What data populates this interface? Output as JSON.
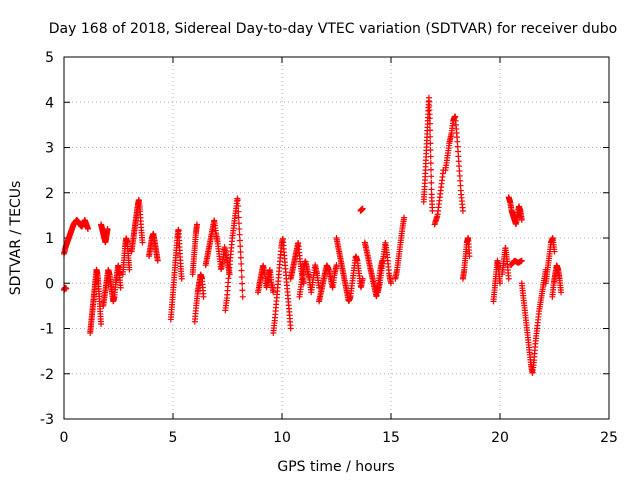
{
  "chart_data": {
    "type": "scatter",
    "title": "Day 168 of 2018, Sidereal Day-to-day VTEC variation (SDTVAR) for receiver dubo",
    "xlabel": "GPS time / hours",
    "ylabel": "SDTVAR / TECUs",
    "xlim": [
      0,
      25
    ],
    "ylim": [
      -3,
      5
    ],
    "xticks": [
      0,
      5,
      10,
      15,
      20,
      25
    ],
    "yticks": [
      -3,
      -2,
      -1,
      0,
      1,
      2,
      3,
      4,
      5
    ],
    "grid": true,
    "marker": "plus",
    "series_color": "#ff0000",
    "segments": [
      {
        "x0": 0.0,
        "x1": 0.1,
        "ys": [
          -0.15,
          -0.1,
          -0.12
        ]
      },
      {
        "x0": 0.0,
        "x1": 1.1,
        "ys": [
          0.65,
          0.8,
          0.9,
          1.0,
          1.1,
          1.2,
          1.3,
          1.35,
          1.4,
          1.35,
          1.3,
          1.25,
          1.3,
          1.4,
          1.3,
          1.2
        ]
      },
      {
        "x0": 1.2,
        "x1": 1.7,
        "ys": [
          -1.1,
          -0.9,
          -0.7,
          -0.5,
          -0.3,
          -0.1,
          0.1,
          0.3,
          0.2,
          0.0,
          -0.3,
          -0.6,
          -0.9
        ]
      },
      {
        "x0": 1.7,
        "x1": 2.0,
        "ys": [
          1.3,
          1.2,
          1.1,
          1.0,
          0.9,
          1.05,
          1.2
        ]
      },
      {
        "x0": 1.8,
        "x1": 2.6,
        "ys": [
          -0.5,
          -0.3,
          -0.1,
          0.1,
          0.3,
          0.2,
          0.0,
          -0.2,
          -0.4,
          -0.3,
          0.0,
          0.2,
          0.4,
          0.2,
          -0.1
        ]
      },
      {
        "x0": 2.7,
        "x1": 3.0,
        "ys": [
          0.2,
          0.5,
          0.8,
          1.0,
          0.9,
          0.6,
          0.3
        ]
      },
      {
        "x0": 3.1,
        "x1": 3.6,
        "ys": [
          0.7,
          0.9,
          1.1,
          1.3,
          1.5,
          1.7,
          1.85,
          1.6,
          1.2,
          0.9
        ]
      },
      {
        "x0": 3.9,
        "x1": 4.3,
        "ys": [
          0.6,
          0.8,
          1.0,
          1.1,
          0.9,
          0.7,
          0.5
        ]
      },
      {
        "x0": 4.9,
        "x1": 5.4,
        "ys": [
          -0.8,
          -0.5,
          -0.2,
          0.1,
          0.4,
          0.7,
          1.0,
          1.2,
          0.8,
          0.4,
          0.1
        ]
      },
      {
        "x0": 5.9,
        "x1": 6.1,
        "ys": [
          0.2,
          0.5,
          0.8,
          1.1,
          1.3
        ]
      },
      {
        "x0": 6.0,
        "x1": 6.4,
        "ys": [
          -0.85,
          -0.5,
          -0.2,
          0.0,
          0.2,
          0.1,
          -0.3
        ]
      },
      {
        "x0": 6.5,
        "x1": 7.6,
        "ys": [
          0.4,
          0.6,
          0.8,
          1.0,
          1.2,
          1.4,
          1.1,
          0.9,
          0.6,
          0.3,
          0.5,
          0.8,
          0.6,
          0.4,
          0.2
        ]
      },
      {
        "x0": 7.4,
        "x1": 8.2,
        "ys": [
          -0.6,
          -0.3,
          0.2,
          0.6,
          1.0,
          1.3,
          1.6,
          1.9,
          1.2,
          0.5,
          -0.3
        ]
      },
      {
        "x0": 8.9,
        "x1": 9.6,
        "ys": [
          -0.2,
          0.0,
          0.2,
          0.4,
          0.2,
          -0.1,
          0.1,
          0.3,
          0.0,
          -0.2
        ]
      },
      {
        "x0": 9.6,
        "x1": 10.4,
        "ys": [
          -1.1,
          -0.8,
          -0.4,
          0.0,
          0.4,
          0.8,
          1.0,
          0.6,
          0.2,
          -0.2,
          -0.6,
          -1.0
        ]
      },
      {
        "x0": 10.4,
        "x1": 11.0,
        "ys": [
          0.1,
          0.3,
          0.5,
          0.7,
          0.9,
          0.5,
          0.2,
          0.0
        ]
      },
      {
        "x0": 10.8,
        "x1": 11.7,
        "ys": [
          -0.3,
          0.0,
          0.3,
          0.5,
          0.3,
          0.1,
          -0.2,
          0.1,
          0.4,
          0.2,
          -0.1
        ]
      },
      {
        "x0": 11.7,
        "x1": 12.5,
        "ys": [
          -0.4,
          -0.2,
          0.0,
          0.2,
          0.4,
          0.3,
          0.1,
          -0.1,
          0.2,
          0.4
        ]
      },
      {
        "x0": 12.5,
        "x1": 13.7,
        "ys": [
          1.0,
          0.8,
          0.6,
          0.4,
          0.2,
          0.0,
          -0.2,
          -0.4,
          -0.3,
          0.0,
          0.3,
          0.6,
          0.5,
          0.2,
          -0.1,
          0.1
        ]
      },
      {
        "x0": 13.6,
        "x1": 13.7,
        "ys": [
          1.6,
          1.65
        ]
      },
      {
        "x0": 13.8,
        "x1": 14.6,
        "ys": [
          0.9,
          0.7,
          0.5,
          0.3,
          0.1,
          -0.1,
          -0.3,
          0.0,
          0.3,
          0.5
        ]
      },
      {
        "x0": 14.4,
        "x1": 15.0,
        "ys": [
          -0.2,
          0.0,
          0.3,
          0.6,
          0.9,
          0.6,
          0.2,
          0.0
        ]
      },
      {
        "x0": 15.2,
        "x1": 15.6,
        "ys": [
          0.1,
          0.3,
          0.6,
          0.9,
          1.2,
          1.45
        ]
      },
      {
        "x0": 16.5,
        "x1": 16.9,
        "ys": [
          1.8,
          2.1,
          2.5,
          2.9,
          3.3,
          3.7,
          4.1,
          3.6,
          2.8,
          2.0,
          1.6
        ]
      },
      {
        "x0": 17.0,
        "x1": 17.4,
        "ys": [
          1.3,
          1.5,
          2.0,
          2.5
        ]
      },
      {
        "x0": 17.5,
        "x1": 18.3,
        "ys": [
          2.5,
          2.8,
          3.1,
          3.3,
          3.6,
          3.7,
          3.2,
          2.6,
          2.0,
          1.6
        ]
      },
      {
        "x0": 18.3,
        "x1": 18.6,
        "ys": [
          0.1,
          0.3,
          0.6,
          0.9,
          1.0,
          0.6
        ]
      },
      {
        "x0": 19.7,
        "x1": 20.0,
        "ys": [
          -0.4,
          -0.1,
          0.2,
          0.5,
          0.3,
          0.0
        ]
      },
      {
        "x0": 20.1,
        "x1": 20.4,
        "ys": [
          0.2,
          0.5,
          0.8,
          0.5,
          0.1
        ]
      },
      {
        "x0": 20.4,
        "x1": 21.0,
        "ys": [
          1.9,
          1.8,
          1.6,
          1.5,
          1.4,
          1.3,
          1.5,
          1.7,
          1.6,
          1.4
        ]
      },
      {
        "x0": 20.5,
        "x1": 21.0,
        "ys": [
          0.4,
          0.5,
          0.45,
          0.5
        ]
      },
      {
        "x0": 21.0,
        "x1": 21.7,
        "ys": [
          0.0,
          -0.3,
          -0.6,
          -0.9,
          -1.2,
          -1.5,
          -1.8,
          -2.0,
          -1.7,
          -1.3,
          -1.0
        ]
      },
      {
        "x0": 21.7,
        "x1": 22.1,
        "ys": [
          -1.0,
          -0.6,
          -0.3,
          0.0,
          0.3
        ]
      },
      {
        "x0": 22.1,
        "x1": 22.5,
        "ys": [
          0.0,
          0.3,
          0.6,
          0.9,
          1.0,
          0.7
        ]
      },
      {
        "x0": 22.4,
        "x1": 22.8,
        "ys": [
          -0.3,
          0.0,
          0.2,
          0.4,
          0.3,
          0.1,
          -0.2
        ]
      }
    ]
  }
}
